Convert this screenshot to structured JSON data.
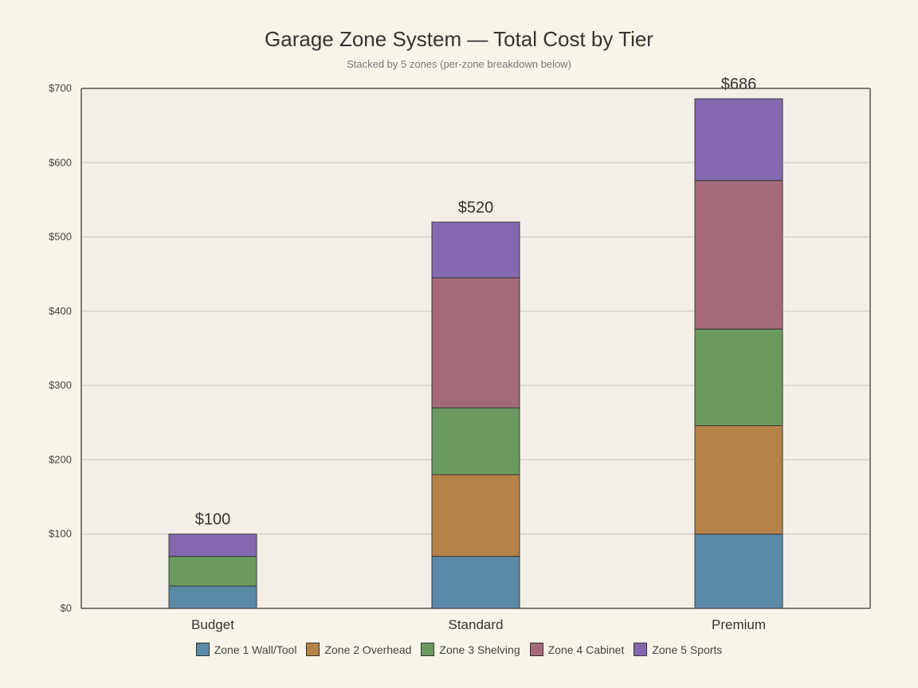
{
  "chart_data": {
    "type": "bar",
    "stacked": true,
    "title": "Garage Zone System — Total Cost by Tier",
    "subtitle": "Stacked by 5 zones (per-zone breakdown below)",
    "xlabel": "",
    "ylabel": "",
    "categories": [
      "Budget",
      "Standard",
      "Premium"
    ],
    "ylim": [
      0,
      700
    ],
    "yticks": [
      0,
      100,
      200,
      300,
      400,
      500,
      600,
      700
    ],
    "ytick_labels": [
      "$0",
      "$100",
      "$200",
      "$300",
      "$400",
      "$500",
      "$600",
      "$700"
    ],
    "grid": true,
    "legend_position": "bottom",
    "series": [
      {
        "name": "Zone 1 Wall/Tool",
        "color": "#5b8aa8",
        "values": [
          30,
          70,
          100
        ]
      },
      {
        "name": "Zone 2 Overhead",
        "color": "#b58347",
        "values": [
          0,
          110,
          146
        ]
      },
      {
        "name": "Zone 3 Shelving",
        "color": "#6b9a5e",
        "values": [
          40,
          90,
          130
        ]
      },
      {
        "name": "Zone 4 Cabinet",
        "color": "#a46a7a",
        "values": [
          0,
          175,
          200
        ]
      },
      {
        "name": "Zone 5 Sports",
        "color": "#8469b0",
        "values": [
          30,
          75,
          110
        ]
      }
    ],
    "totals": [
      100,
      520,
      686
    ],
    "total_labels": [
      "$100",
      "$520",
      "$686"
    ]
  },
  "style": {
    "background": "#f8f4ea",
    "plot_background": "#f3efe6",
    "grid_color": "#c9c6bb",
    "axis_color": "#555555",
    "text_color": "#333333"
  }
}
